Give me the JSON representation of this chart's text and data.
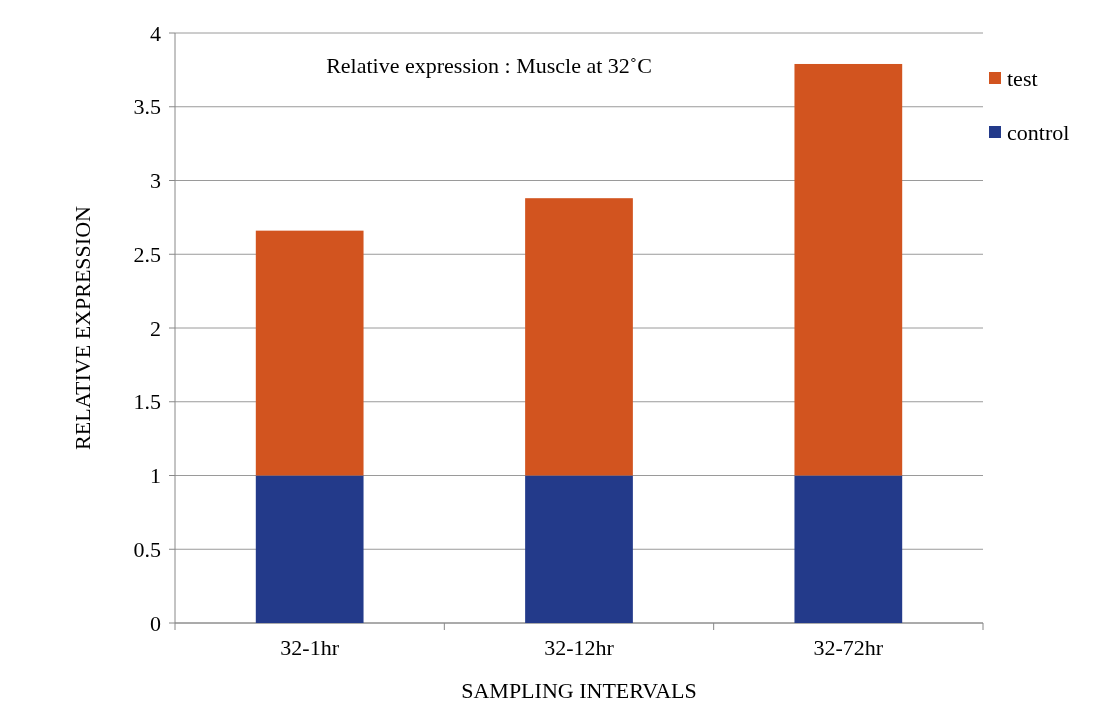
{
  "chart_data": {
    "type": "bar",
    "title": "Relative expression : Muscle at 32˚C",
    "xlabel": "SAMPLING INTERVALS",
    "ylabel": "RELATIVE EXPRESSION",
    "categories": [
      "32-1hr",
      "32-12hr",
      "32-72hr"
    ],
    "series": [
      {
        "name": "control",
        "color": "#233a8a",
        "values": [
          1,
          1,
          1
        ]
      },
      {
        "name": "test",
        "color": "#d2541f",
        "values": [
          1.66,
          1.88,
          2.79
        ]
      }
    ],
    "stacked": true,
    "ylim": [
      0,
      4
    ],
    "yticks": [
      0,
      0.5,
      1,
      1.5,
      2,
      2.5,
      3,
      3.5,
      4
    ],
    "grid": "y",
    "legend": "top right"
  }
}
